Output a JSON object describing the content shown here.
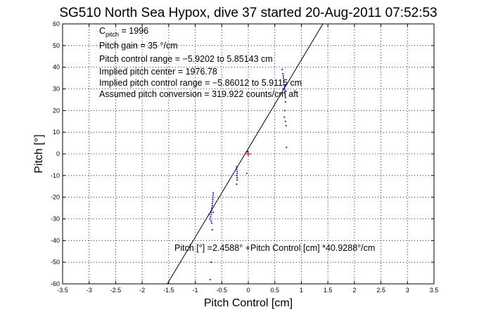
{
  "chart_data": {
    "type": "scatter",
    "title": "SG510 North Sea Hypox, dive 37 started 20-Aug-2011 07:52:53",
    "xlabel": "Pitch Control [cm]",
    "ylabel": "Pitch [°]",
    "xlim": [
      -3.5,
      3.5
    ],
    "ylim": [
      -60,
      60
    ],
    "grid": true,
    "x_ticks": [
      "-3.5",
      "-3",
      "-2.5",
      "-2",
      "-1.5",
      "-1",
      "-0.5",
      "0",
      "0.5",
      "1",
      "1.5",
      "2",
      "2.5",
      "3",
      "3.5"
    ],
    "y_ticks": [
      "-60",
      "-50",
      "-40",
      "-30",
      "-20",
      "-10",
      "0",
      "10",
      "20",
      "30",
      "40",
      "50",
      "60"
    ],
    "annotations": {
      "c_pitch_prefix": "C",
      "c_pitch_sub": "pitch",
      "c_pitch_value": " = 1996",
      "pitch_gain": "Pitch gain = 35 °/cm",
      "pitch_control_range": "Pitch control range = −5.9202 to 5.85143 cm",
      "implied_pitch_center": "Implied pitch center = 1976.78",
      "implied_pitch_control_range": "Implied pitch control range = −5.86012 to 5.9115 cm",
      "assumed_pitch_conversion": "Assumed pitch conversion = 319.922 counts/cm aft",
      "fit_equation": "Pitch [°] =2.4588° +Pitch Control [cm] *40.9288°/cm"
    },
    "fit_line": {
      "intercept": 2.4588,
      "slope": 40.9288,
      "color": "#000000"
    },
    "center_marker": {
      "x": 0,
      "y": 0,
      "color": "#ff0000"
    },
    "series": [
      {
        "color": "#0000ff",
        "points": [
          [
            -0.72,
            -30
          ],
          [
            -0.71,
            -29
          ],
          [
            -0.7,
            -28
          ],
          [
            -0.7,
            -27
          ],
          [
            -0.69,
            -26
          ],
          [
            -0.69,
            -25
          ],
          [
            -0.68,
            -24
          ],
          [
            -0.68,
            -23
          ],
          [
            -0.67,
            -22
          ],
          [
            -0.67,
            -21
          ],
          [
            -0.67,
            -20
          ],
          [
            -0.66,
            -19
          ],
          [
            -0.66,
            -18
          ],
          [
            -0.7,
            -31
          ],
          [
            -0.69,
            -32
          ],
          [
            -0.68,
            -35
          ],
          [
            -0.66,
            -27
          ],
          [
            -0.74,
            -28
          ],
          [
            -0.7,
            -50
          ],
          [
            -0.72,
            -58
          ],
          [
            -0.22,
            -6
          ],
          [
            -0.22,
            -7
          ],
          [
            -0.21,
            -8
          ],
          [
            -0.21,
            -9
          ],
          [
            -0.22,
            -10
          ],
          [
            -0.21,
            -11
          ],
          [
            -0.21,
            -12
          ],
          [
            -0.22,
            -14
          ],
          [
            -0.02,
            1
          ],
          [
            -0.03,
            -9
          ],
          [
            0.64,
            39
          ],
          [
            0.65,
            37
          ],
          [
            0.66,
            36
          ],
          [
            0.66,
            35
          ],
          [
            0.67,
            34
          ],
          [
            0.67,
            33
          ],
          [
            0.67,
            32
          ],
          [
            0.68,
            31
          ],
          [
            0.68,
            30
          ],
          [
            0.69,
            29
          ],
          [
            0.69,
            28
          ],
          [
            0.66,
            30
          ],
          [
            0.7,
            32
          ],
          [
            0.71,
            29
          ],
          [
            0.7,
            26
          ],
          [
            0.7,
            24
          ],
          [
            0.69,
            20
          ],
          [
            0.68,
            17
          ],
          [
            0.7,
            15
          ],
          [
            0.71,
            13
          ],
          [
            0.72,
            3
          ]
        ]
      }
    ]
  }
}
